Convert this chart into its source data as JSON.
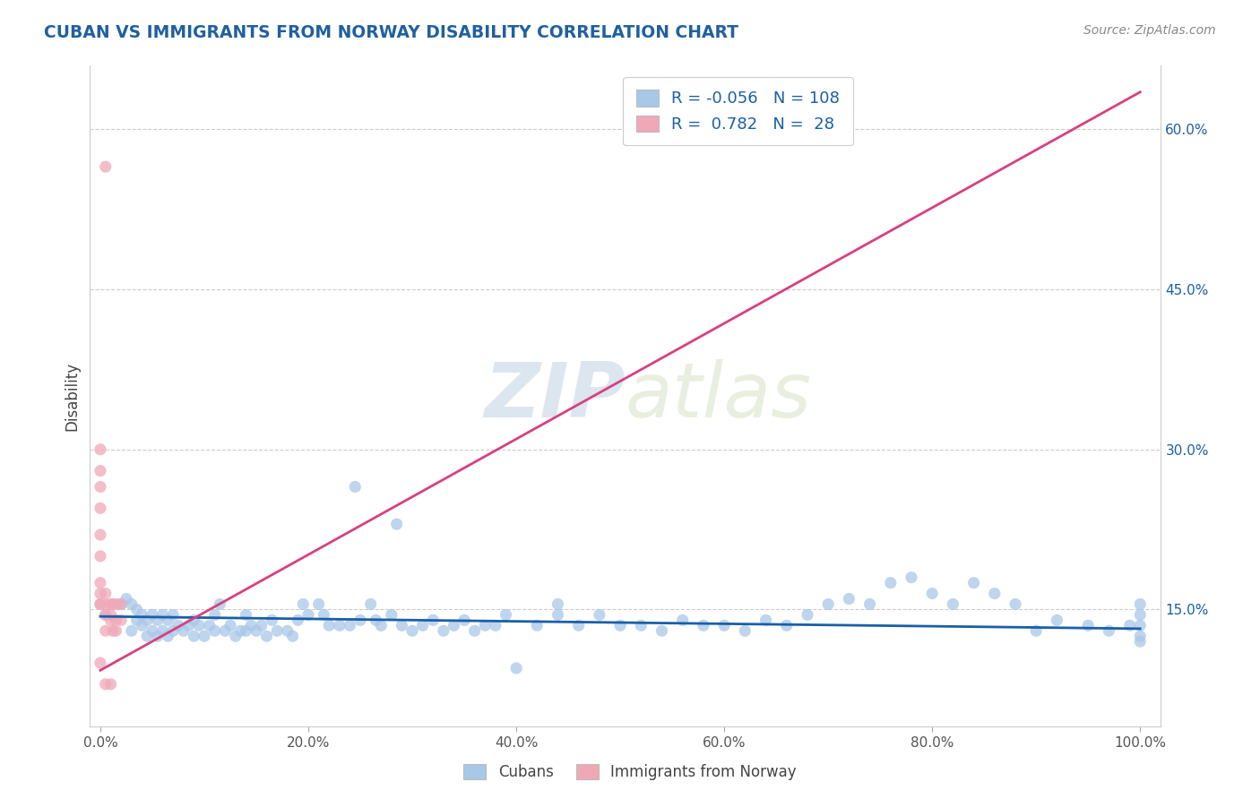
{
  "title": "CUBAN VS IMMIGRANTS FROM NORWAY DISABILITY CORRELATION CHART",
  "source": "Source: ZipAtlas.com",
  "ylabel": "Disability",
  "xlabel_ticks": [
    "0.0%",
    "20.0%",
    "40.0%",
    "60.0%",
    "80.0%",
    "100.0%"
  ],
  "xlabel_vals": [
    0.0,
    0.2,
    0.4,
    0.6,
    0.8,
    1.0
  ],
  "ylabel_ticks": [
    "15.0%",
    "30.0%",
    "45.0%",
    "60.0%"
  ],
  "ylabel_vals": [
    0.15,
    0.3,
    0.45,
    0.6
  ],
  "xlim": [
    -0.01,
    1.02
  ],
  "ylim": [
    0.04,
    0.66
  ],
  "blue_R": -0.056,
  "blue_N": 108,
  "pink_R": 0.782,
  "pink_N": 28,
  "blue_color": "#a8c8e8",
  "pink_color": "#f0a8b8",
  "blue_line_color": "#1a5fa8",
  "pink_line_color": "#d84080",
  "legend_blue_box": "#a8c8e8",
  "legend_pink_box": "#f0a8b8",
  "watermark_zip": "ZIP",
  "watermark_atlas": "atlas",
  "title_color": "#2060a0",
  "source_color": "#888888",
  "blue_scatter_x": [
    0.005,
    0.02,
    0.025,
    0.03,
    0.03,
    0.035,
    0.035,
    0.04,
    0.04,
    0.045,
    0.045,
    0.05,
    0.05,
    0.055,
    0.055,
    0.06,
    0.06,
    0.065,
    0.065,
    0.07,
    0.07,
    0.075,
    0.08,
    0.085,
    0.09,
    0.09,
    0.095,
    0.1,
    0.105,
    0.11,
    0.11,
    0.115,
    0.12,
    0.125,
    0.13,
    0.135,
    0.14,
    0.14,
    0.145,
    0.15,
    0.155,
    0.16,
    0.165,
    0.17,
    0.18,
    0.185,
    0.19,
    0.195,
    0.2,
    0.21,
    0.215,
    0.22,
    0.23,
    0.24,
    0.245,
    0.25,
    0.26,
    0.265,
    0.27,
    0.28,
    0.285,
    0.29,
    0.3,
    0.31,
    0.32,
    0.33,
    0.34,
    0.35,
    0.36,
    0.37,
    0.38,
    0.39,
    0.4,
    0.42,
    0.44,
    0.44,
    0.46,
    0.48,
    0.5,
    0.52,
    0.54,
    0.56,
    0.58,
    0.6,
    0.62,
    0.64,
    0.66,
    0.68,
    0.7,
    0.72,
    0.74,
    0.76,
    0.78,
    0.8,
    0.82,
    0.84,
    0.86,
    0.88,
    0.9,
    0.92,
    0.95,
    0.97,
    0.99,
    1.0,
    1.0,
    1.0,
    1.0,
    1.0
  ],
  "blue_scatter_y": [
    0.145,
    0.155,
    0.16,
    0.13,
    0.155,
    0.14,
    0.15,
    0.135,
    0.145,
    0.125,
    0.14,
    0.13,
    0.145,
    0.125,
    0.14,
    0.13,
    0.145,
    0.125,
    0.14,
    0.13,
    0.145,
    0.135,
    0.13,
    0.135,
    0.125,
    0.14,
    0.135,
    0.125,
    0.135,
    0.13,
    0.145,
    0.155,
    0.13,
    0.135,
    0.125,
    0.13,
    0.13,
    0.145,
    0.135,
    0.13,
    0.135,
    0.125,
    0.14,
    0.13,
    0.13,
    0.125,
    0.14,
    0.155,
    0.145,
    0.155,
    0.145,
    0.135,
    0.135,
    0.135,
    0.265,
    0.14,
    0.155,
    0.14,
    0.135,
    0.145,
    0.23,
    0.135,
    0.13,
    0.135,
    0.14,
    0.13,
    0.135,
    0.14,
    0.13,
    0.135,
    0.135,
    0.145,
    0.095,
    0.135,
    0.145,
    0.155,
    0.135,
    0.145,
    0.135,
    0.135,
    0.13,
    0.14,
    0.135,
    0.135,
    0.13,
    0.14,
    0.135,
    0.145,
    0.155,
    0.16,
    0.155,
    0.175,
    0.18,
    0.165,
    0.155,
    0.175,
    0.165,
    0.155,
    0.13,
    0.14,
    0.135,
    0.13,
    0.135,
    0.125,
    0.135,
    0.145,
    0.155,
    0.12
  ],
  "pink_scatter_x": [
    0.0,
    0.0,
    0.0,
    0.0,
    0.0,
    0.0,
    0.0,
    0.0,
    0.0,
    0.0,
    0.0,
    0.005,
    0.005,
    0.005,
    0.005,
    0.005,
    0.005,
    0.01,
    0.01,
    0.01,
    0.01,
    0.012,
    0.012,
    0.015,
    0.015,
    0.015,
    0.02,
    0.02
  ],
  "pink_scatter_y": [
    0.3,
    0.28,
    0.265,
    0.245,
    0.22,
    0.2,
    0.175,
    0.165,
    0.155,
    0.155,
    0.1,
    0.565,
    0.155,
    0.165,
    0.145,
    0.13,
    0.08,
    0.155,
    0.145,
    0.14,
    0.08,
    0.155,
    0.13,
    0.155,
    0.14,
    0.13,
    0.155,
    0.14
  ],
  "blue_trend_x": [
    0.0,
    1.0
  ],
  "blue_trend_y": [
    0.1435,
    0.132
  ],
  "pink_trend_x": [
    0.0,
    1.0
  ],
  "pink_trend_y": [
    0.093,
    0.635
  ]
}
